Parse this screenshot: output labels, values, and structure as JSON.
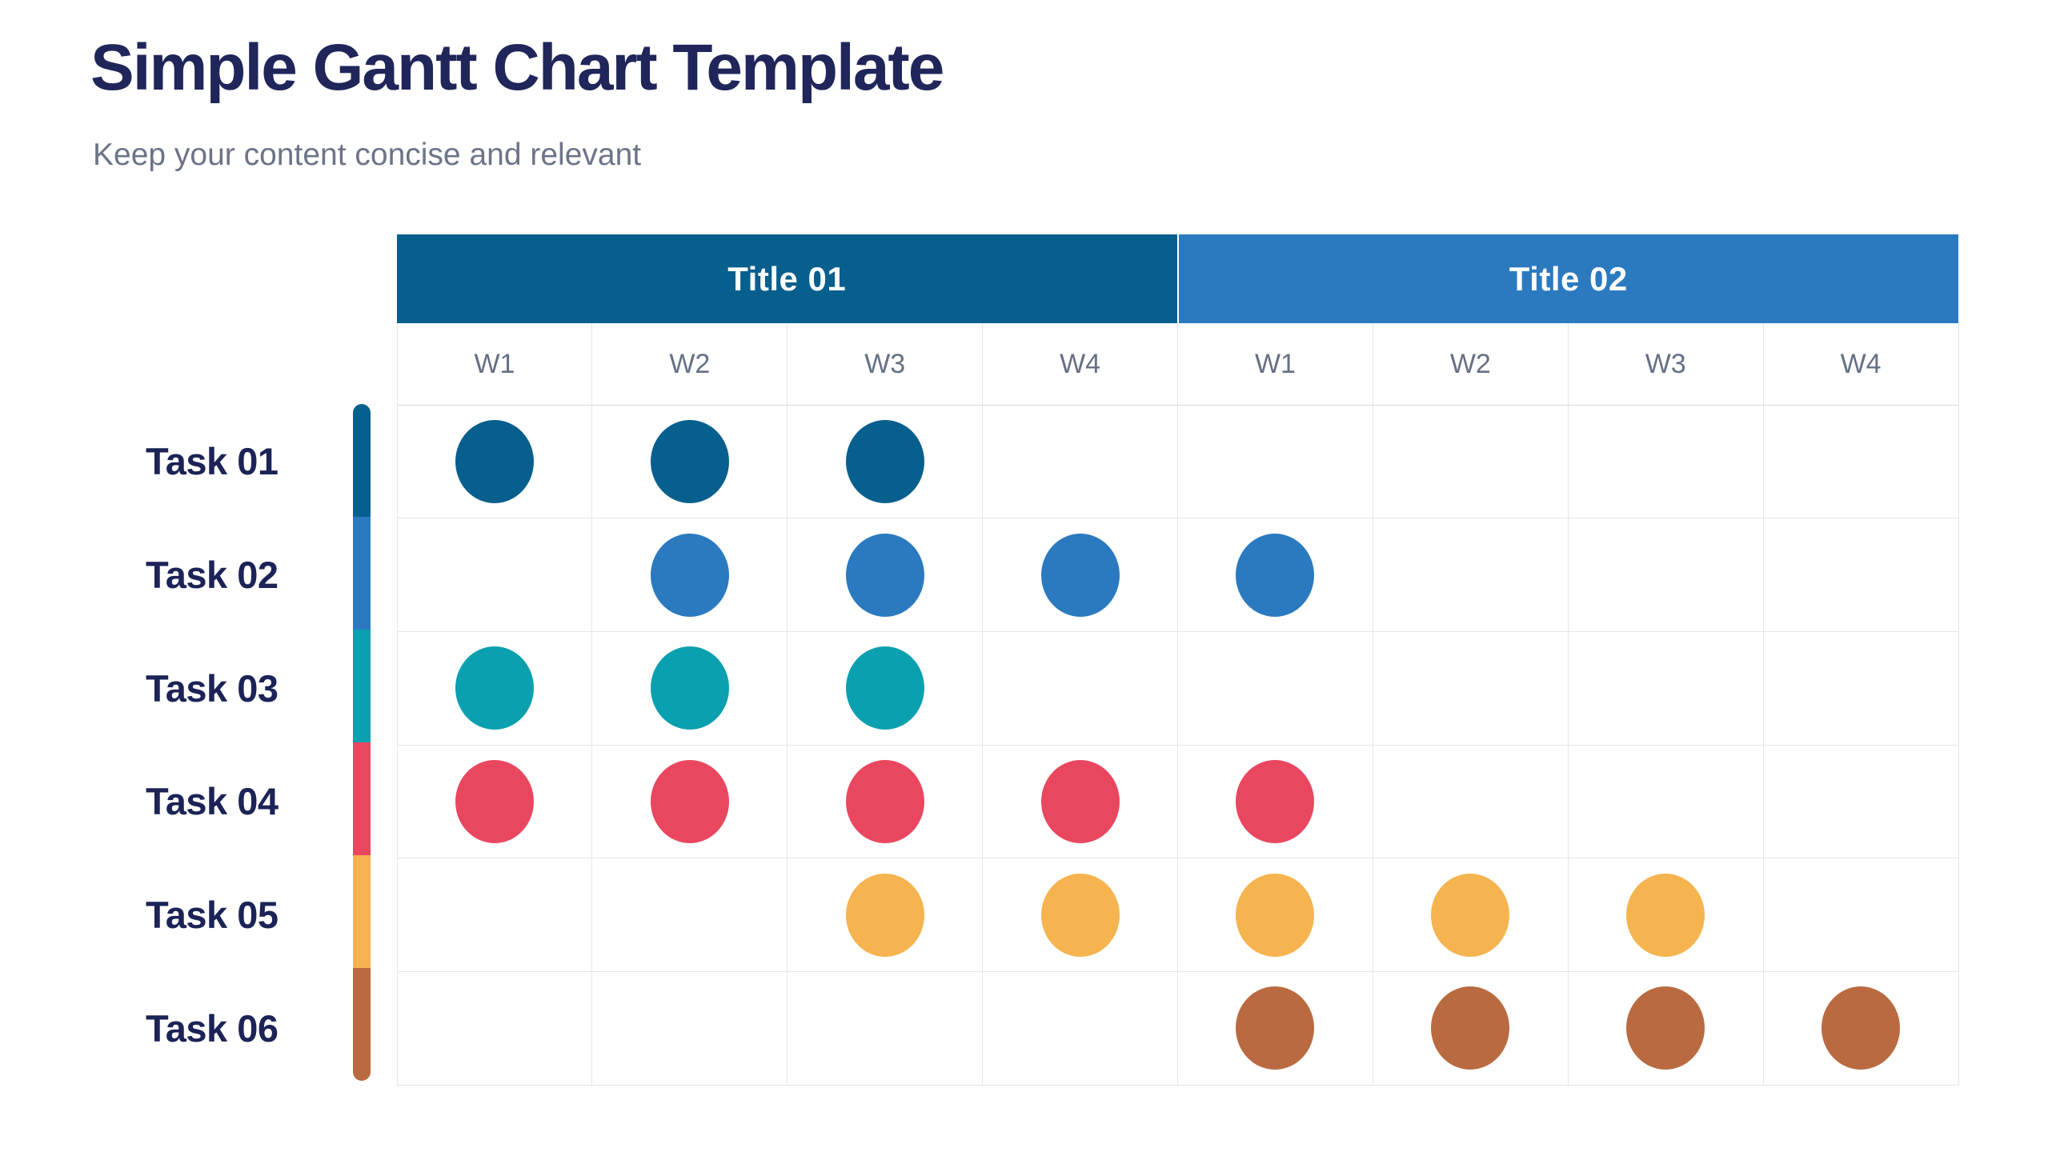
{
  "page": {
    "title": "Simple Gantt Chart Template",
    "subtitle": "Keep your content concise and relevant"
  },
  "chart_data": {
    "type": "gantt",
    "title": "Simple Gantt Chart Template",
    "subtitle": "Keep your content concise and relevant",
    "groups": [
      {
        "label": "Title 01",
        "color": "#075f8d",
        "weeks": [
          "W1",
          "W2",
          "W3",
          "W4"
        ]
      },
      {
        "label": "Title 02",
        "color": "#2b7ac0",
        "weeks": [
          "W1",
          "W2",
          "W3",
          "W4"
        ]
      }
    ],
    "week_columns": [
      "W1",
      "W2",
      "W3",
      "W4",
      "W1",
      "W2",
      "W3",
      "W4"
    ],
    "tasks": [
      {
        "label": "Task 01",
        "color": "#075f8d",
        "active_weeks": [
          1,
          2,
          3
        ]
      },
      {
        "label": "Task 02",
        "color": "#2b7ac0",
        "active_weeks": [
          2,
          3,
          4,
          5
        ]
      },
      {
        "label": "Task 03",
        "color": "#0aa0af",
        "active_weeks": [
          1,
          2,
          3
        ]
      },
      {
        "label": "Task 04",
        "color": "#e94760",
        "active_weeks": [
          1,
          2,
          3,
          4,
          5
        ]
      },
      {
        "label": "Task 05",
        "color": "#f5b44f",
        "active_weeks": [
          3,
          4,
          5,
          6,
          7
        ]
      },
      {
        "label": "Task 06",
        "color": "#ba6a40",
        "active_weeks": [
          5,
          6,
          7,
          8
        ]
      }
    ],
    "layout_hints": {
      "columns_total": 8,
      "rows_total": 6,
      "grid": "on",
      "legend_position": "none",
      "marker": "circle"
    },
    "colors": {
      "title_text": "#20265a",
      "subtitle_text": "#6d7488",
      "week_label_text": "#667085",
      "task_label_text": "#1c2356",
      "header_text": "#ffffff",
      "grid_line": "#e6e6e6",
      "grid_line_top": "#d8d8d8",
      "background": "#ffffff"
    }
  }
}
